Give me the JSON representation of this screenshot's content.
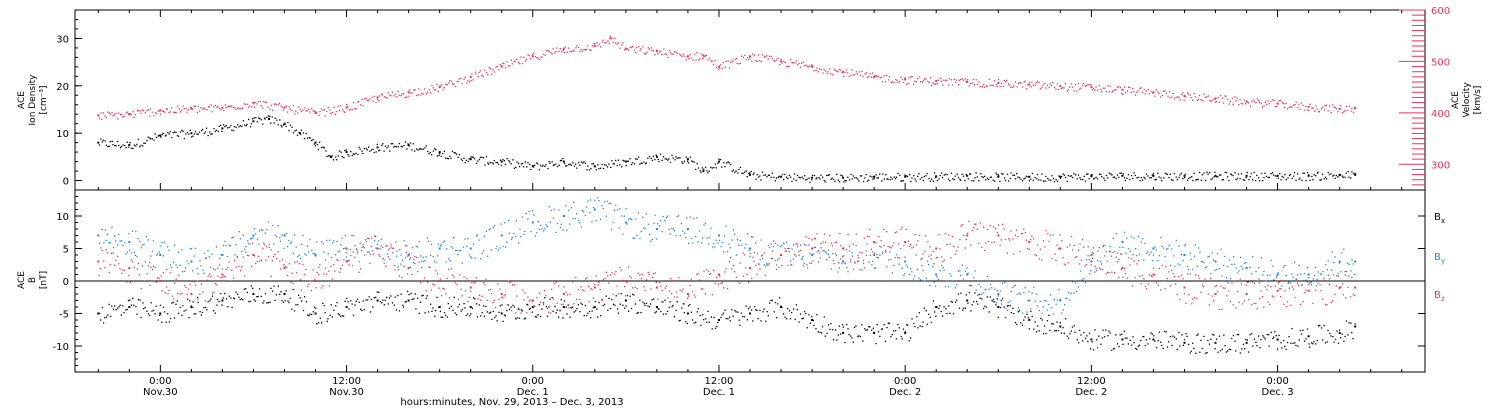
{
  "chart_data": [
    {
      "type": "scatter",
      "panel": "top",
      "ylabel_lines": [
        "ACE",
        "Ion Density",
        "[cm⁻³]"
      ],
      "y2label_lines": [
        "ACE",
        "Velocity",
        "[km/s]"
      ],
      "ylim": [
        -2,
        36
      ],
      "y2lim": [
        250,
        600
      ],
      "yticks": [
        0,
        10,
        20,
        30
      ],
      "y2ticks": [
        300,
        400,
        500,
        600
      ],
      "colors": {
        "density": "#000000",
        "velocity": "#e8365e"
      },
      "series": [
        {
          "key": "density",
          "axis": "left",
          "x": [
            -4,
            -2,
            0,
            2,
            4,
            6,
            7,
            8,
            9,
            10,
            11,
            12,
            14,
            16,
            18,
            20,
            22,
            24,
            26,
            28,
            30,
            32,
            34,
            35,
            36,
            38,
            40,
            42,
            44,
            46,
            48,
            50,
            52,
            54,
            56,
            58,
            60,
            62,
            64,
            66,
            68,
            70,
            72,
            74,
            76,
            77
          ],
          "values": [
            8,
            7.5,
            9.5,
            10,
            11,
            12.5,
            13,
            12,
            10,
            8,
            5,
            6,
            7,
            7.5,
            6,
            4.5,
            4,
            3,
            4,
            3,
            4,
            5,
            4.5,
            2,
            4,
            1.2,
            0.8,
            0.6,
            0.6,
            0.8,
            0.8,
            0.9,
            1.0,
            0.8,
            0.8,
            0.8,
            0.9,
            1.0,
            1.0,
            1.0,
            1.0,
            1.0,
            1.0,
            1.0,
            1.2,
            1.2
          ]
        },
        {
          "key": "velocity",
          "axis": "right",
          "x": [
            -4,
            -2,
            0,
            2,
            4,
            6,
            8,
            10,
            12,
            14,
            16,
            18,
            20,
            22,
            24,
            26,
            28,
            29,
            30,
            32,
            34,
            35,
            36,
            38,
            40,
            42,
            44,
            46,
            48,
            50,
            52,
            54,
            56,
            58,
            60,
            62,
            64,
            66,
            68,
            70,
            72,
            74,
            76,
            77
          ],
          "values": [
            395,
            398,
            405,
            408,
            410,
            420,
            410,
            400,
            410,
            430,
            440,
            450,
            470,
            490,
            510,
            525,
            530,
            545,
            525,
            520,
            510,
            512,
            490,
            510,
            500,
            490,
            480,
            470,
            465,
            462,
            460,
            458,
            455,
            452,
            450,
            445,
            440,
            433,
            428,
            422,
            418,
            412,
            408,
            410
          ]
        }
      ]
    },
    {
      "type": "scatter",
      "panel": "bottom",
      "ylabel_lines": [
        "ACE",
        "B",
        "[nT]"
      ],
      "ylim": [
        -14,
        14
      ],
      "yticks": [
        -10,
        -5,
        0,
        5,
        10
      ],
      "zero_line": true,
      "colors": {
        "Bx": "#000000",
        "By": "#1e88e5",
        "Bz": "#e8365e"
      },
      "legend": [
        {
          "key": "Bx",
          "main": "B",
          "sub": "x"
        },
        {
          "key": "By",
          "main": "B",
          "sub": "y"
        },
        {
          "key": "Bz",
          "main": "B",
          "sub": "z"
        }
      ],
      "series": [
        {
          "key": "Bx",
          "x": [
            -4,
            -2,
            0,
            2,
            4,
            6,
            8,
            10,
            12,
            14,
            16,
            18,
            20,
            22,
            24,
            26,
            28,
            30,
            32,
            34,
            36,
            38,
            40,
            42,
            44,
            46,
            48,
            50,
            52,
            54,
            56,
            58,
            60,
            62,
            64,
            66,
            68,
            70,
            72,
            74,
            76,
            77
          ],
          "values": [
            -5,
            -4,
            -5,
            -4,
            -3,
            -2,
            -2,
            -5,
            -4,
            -3,
            -3,
            -4,
            -4,
            -5,
            -4,
            -4,
            -4,
            -3,
            -4,
            -5,
            -6,
            -5,
            -4,
            -6,
            -8,
            -8,
            -8,
            -4,
            -3,
            -4,
            -6,
            -7,
            -9,
            -9,
            -9,
            -9.5,
            -9.5,
            -9.5,
            -9,
            -8.5,
            -8,
            -7
          ]
        },
        {
          "key": "By",
          "x": [
            -4,
            -2,
            0,
            2,
            4,
            6,
            8,
            10,
            12,
            14,
            16,
            18,
            20,
            22,
            24,
            26,
            28,
            30,
            32,
            34,
            36,
            38,
            40,
            42,
            44,
            46,
            48,
            50,
            52,
            54,
            56,
            58,
            60,
            62,
            64,
            66,
            68,
            70,
            72,
            74,
            76,
            77
          ],
          "values": [
            7,
            6,
            4,
            3,
            4,
            7,
            7,
            4,
            5,
            5,
            4,
            5,
            5,
            7,
            9,
            10,
            11,
            9,
            8,
            8,
            7,
            5,
            4,
            4,
            3,
            4,
            3,
            1,
            1,
            -2,
            -3,
            -3,
            3,
            6,
            5,
            4,
            3,
            2,
            1,
            1,
            3,
            3
          ]
        },
        {
          "key": "Bz",
          "x": [
            -4,
            -2,
            0,
            2,
            4,
            6,
            8,
            10,
            12,
            14,
            16,
            18,
            20,
            22,
            24,
            26,
            28,
            30,
            32,
            34,
            36,
            38,
            40,
            42,
            44,
            46,
            48,
            50,
            52,
            54,
            56,
            58,
            60,
            62,
            64,
            66,
            68,
            70,
            72,
            74,
            76,
            77
          ],
          "values": [
            3,
            2,
            0,
            -2,
            1,
            4,
            2,
            0,
            3,
            5,
            2,
            0,
            -1,
            -2,
            -3,
            -2,
            -1,
            0,
            -1,
            -2,
            1,
            2,
            4,
            5,
            5,
            6,
            6,
            5,
            7,
            7,
            6,
            5,
            4,
            2,
            1,
            -1,
            -2,
            -2,
            -1.5,
            -1.5,
            -1,
            -1
          ]
        }
      ]
    }
  ],
  "xaxis": {
    "xlim": [
      -5.5,
      81.5
    ],
    "ticks": [
      {
        "x": 0,
        "time": "0:00",
        "date": "Nov.30"
      },
      {
        "x": 12,
        "time": "12:00",
        "date": "Nov.30"
      },
      {
        "x": 24,
        "time": "0:00",
        "date": "Dec. 1"
      },
      {
        "x": 36,
        "time": "12:00",
        "date": "Dec. 1"
      },
      {
        "x": 48,
        "time": "0:00",
        "date": "Dec. 2"
      },
      {
        "x": 60,
        "time": "12:00",
        "date": "Dec. 2"
      },
      {
        "x": 72,
        "time": "0:00",
        "date": "Dec. 3"
      }
    ],
    "minor_step": 2,
    "xlabel": "hours:minutes, Nov. 29, 2013 – Dec. 3, 2013"
  }
}
